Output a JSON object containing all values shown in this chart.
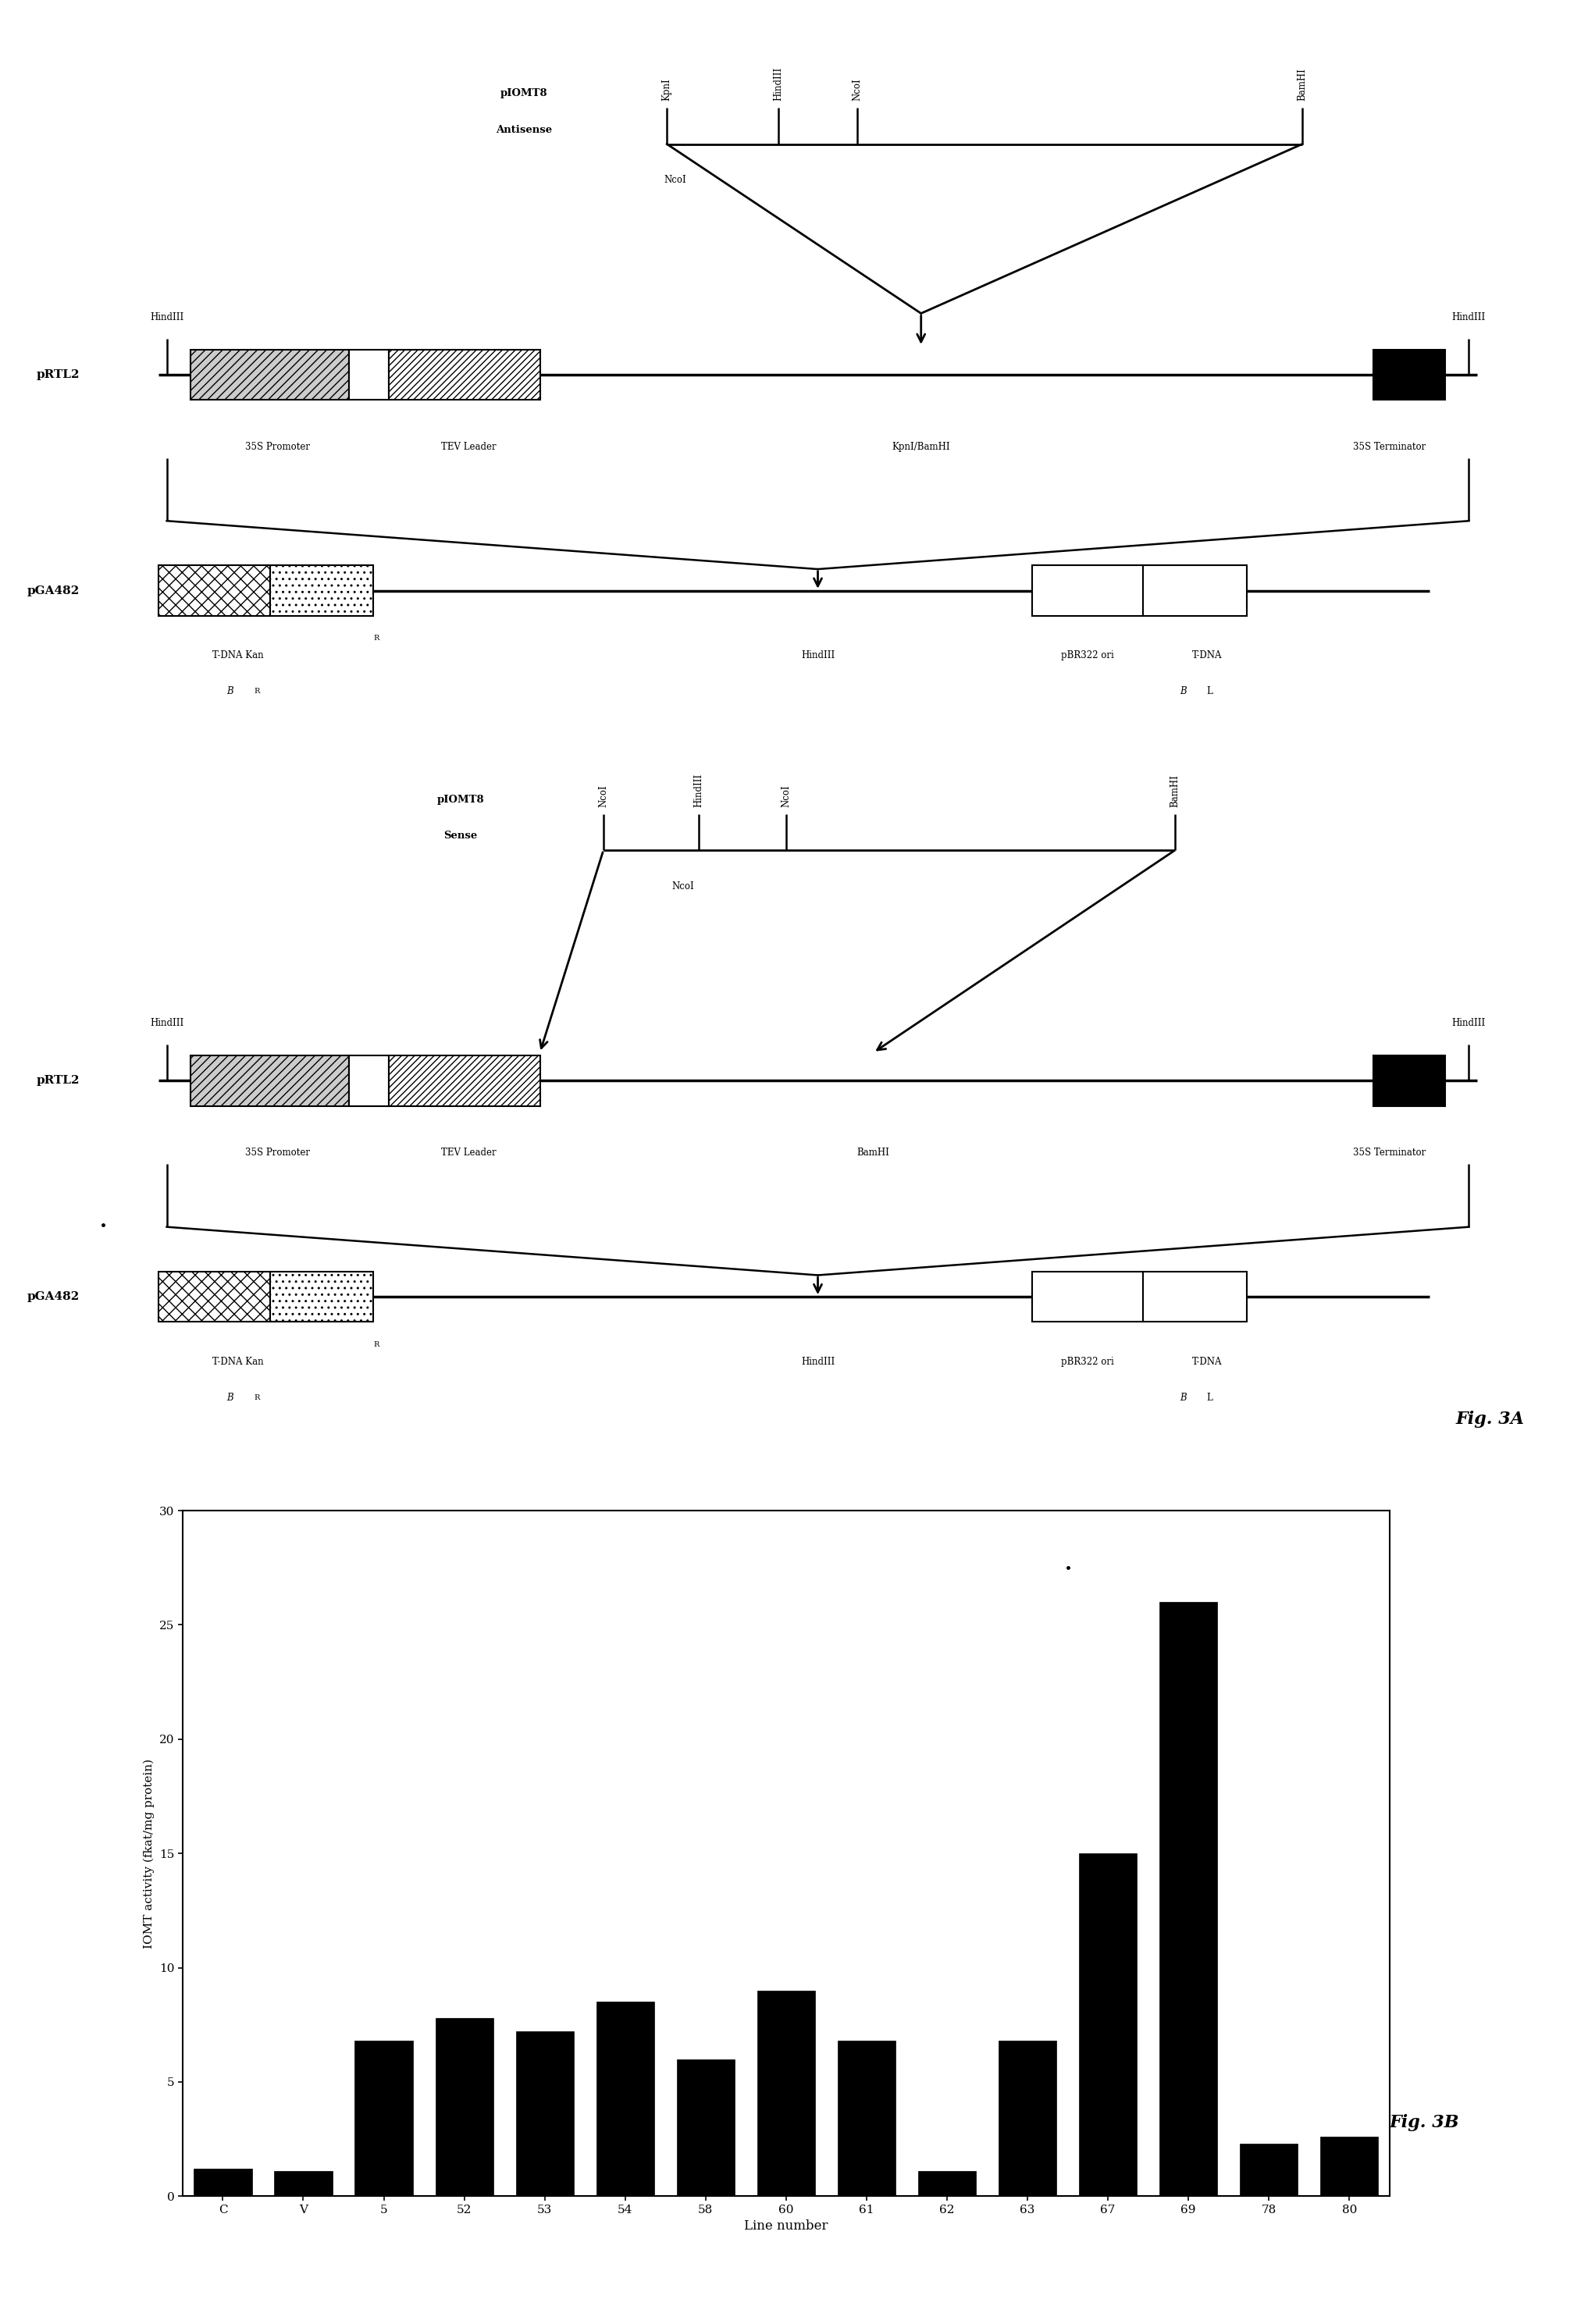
{
  "fig_width": 20.34,
  "fig_height": 29.77,
  "background_color": "#ffffff",
  "bar_categories": [
    "C",
    "V",
    "5",
    "52",
    "53",
    "54",
    "58",
    "60",
    "61",
    "62",
    "63",
    "67",
    "69",
    "78",
    "80"
  ],
  "bar_values": [
    1.2,
    1.1,
    6.8,
    7.8,
    7.2,
    8.5,
    6.0,
    9.0,
    6.8,
    1.1,
    6.8,
    15.0,
    26.0,
    2.3,
    2.6
  ],
  "bar_color": "#000000",
  "bar_xlabel": "Line number",
  "bar_ylabel": "IOMT activity (fkat/mg protein)",
  "bar_ylim": [
    0,
    30
  ],
  "bar_yticks": [
    0,
    5,
    10,
    15,
    20,
    25,
    30
  ],
  "fig3b_label": "Fig. 3B",
  "fig3a_label": "Fig. 3A"
}
